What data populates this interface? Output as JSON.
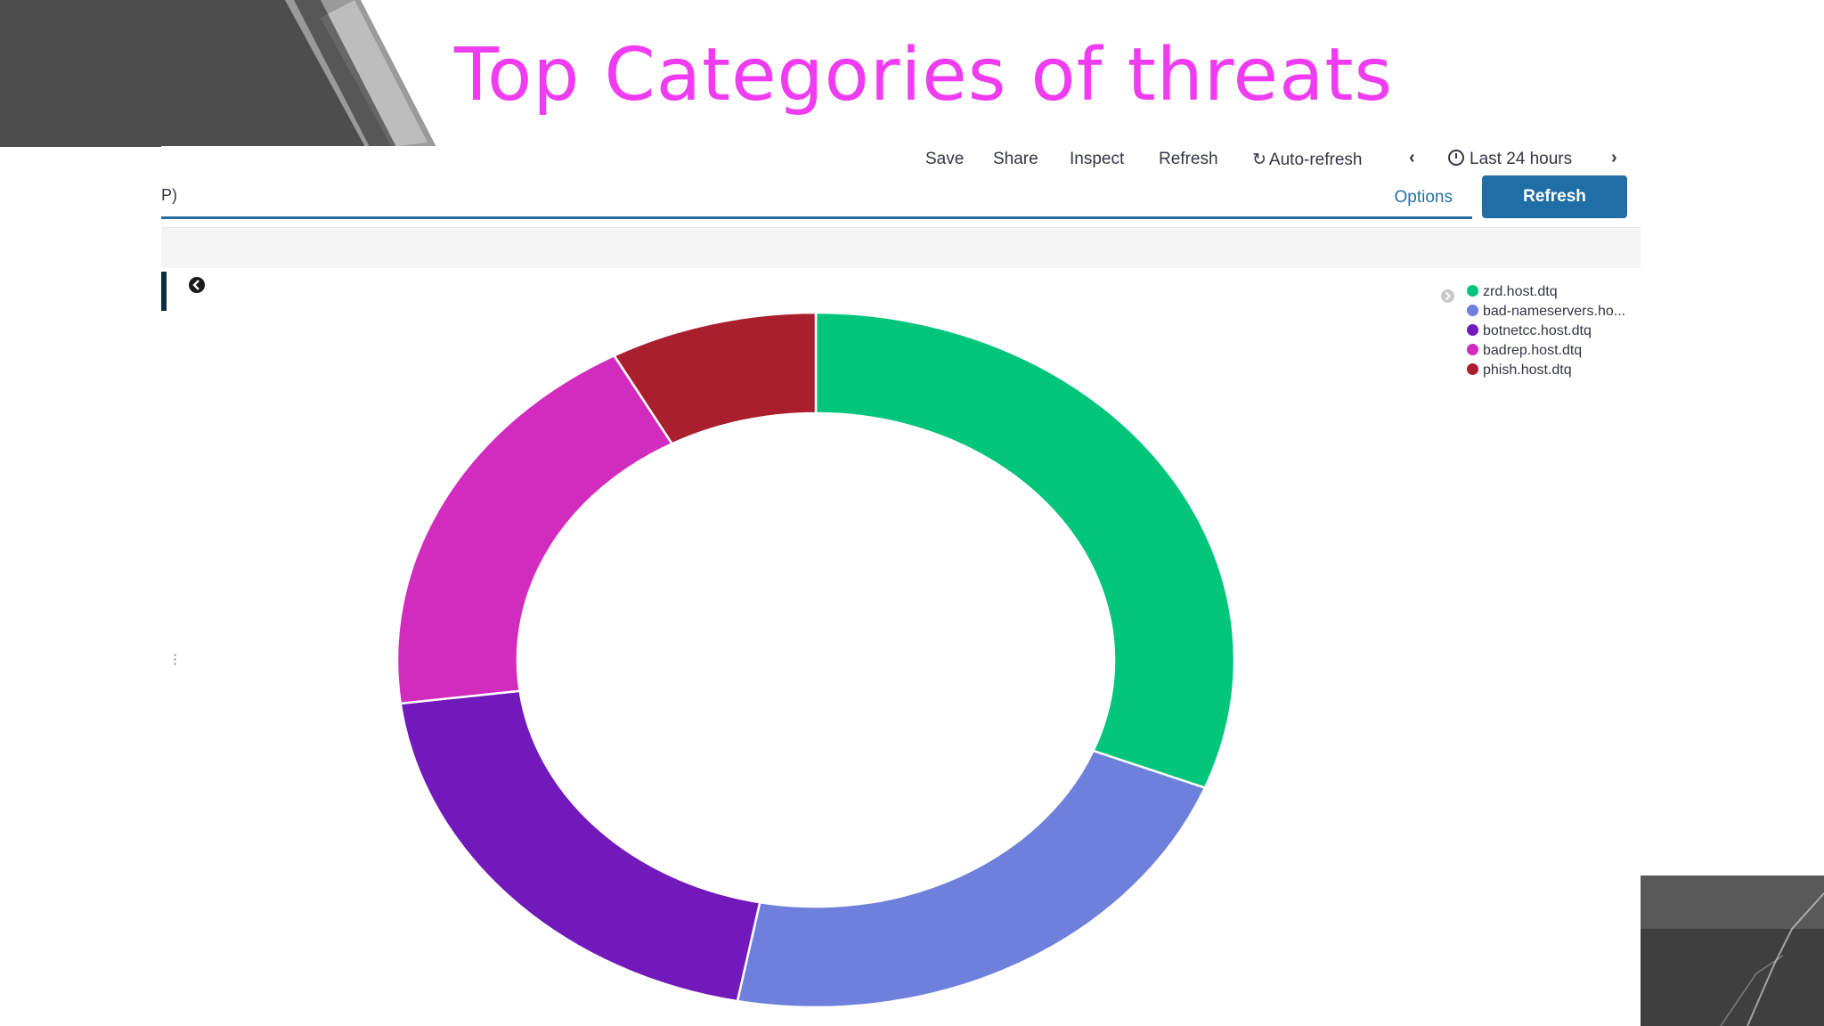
{
  "slide": {
    "title": "Top Categories of threats"
  },
  "top_menu": {
    "save": "Save",
    "share": "Share",
    "inspect": "Inspect",
    "refresh": "Refresh",
    "auto_refresh": "Auto-refresh",
    "time_range": "Last 24 hours",
    "prev_icon": "chevron-left-icon",
    "next_icon": "chevron-right-icon"
  },
  "query_bar": {
    "visible_text": "P)",
    "options_label": "Options",
    "refresh_button_label": "Refresh"
  },
  "chart_data": {
    "type": "pie",
    "donut": true,
    "legend_position": "top-right",
    "categories": [
      "zrd.host.dtq",
      "bad-nameservers.ho...",
      "botnetcc.host.dtq",
      "badrep.host.dtq",
      "phish.host.dtq"
    ],
    "values": [
      31,
      22,
      20,
      19,
      8
    ],
    "colors": [
      "#00c57b",
      "#6f80dc",
      "#7219bb",
      "#d22cbf",
      "#aa1f2e"
    ]
  }
}
